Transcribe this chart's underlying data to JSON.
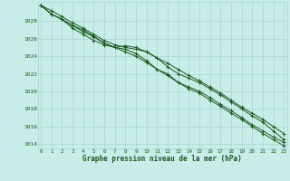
{
  "title": "Graphe pression niveau de la mer (hPa)",
  "background_color": "#c8ece8",
  "grid_color": "#a8d4d0",
  "line_color": "#1a5c1a",
  "xlim": [
    -0.3,
    23.3
  ],
  "ylim": [
    1013.5,
    1030.2
  ],
  "yticks": [
    1014,
    1016,
    1018,
    1020,
    1022,
    1024,
    1026,
    1028
  ],
  "xticks": [
    0,
    1,
    2,
    3,
    4,
    5,
    6,
    7,
    8,
    9,
    10,
    11,
    12,
    13,
    14,
    15,
    16,
    17,
    18,
    19,
    20,
    21,
    22,
    23
  ],
  "series": [
    [
      1029.8,
      1029.2,
      1028.5,
      1027.8,
      1027.2,
      1026.5,
      1025.8,
      1025.3,
      1025.0,
      1024.8,
      1024.5,
      1023.8,
      1023.2,
      1022.5,
      1021.8,
      1021.2,
      1020.5,
      1019.8,
      1019.0,
      1018.2,
      1017.5,
      1016.8,
      1016.0,
      1015.2
    ],
    [
      1029.8,
      1028.8,
      1028.2,
      1027.5,
      1026.8,
      1026.2,
      1025.5,
      1025.0,
      1025.2,
      1025.0,
      1024.5,
      1023.8,
      1022.8,
      1022.0,
      1021.5,
      1021.0,
      1020.3,
      1019.6,
      1018.8,
      1018.0,
      1017.2,
      1016.5,
      1015.5,
      1014.5
    ],
    [
      1029.8,
      1028.8,
      1028.2,
      1027.2,
      1026.5,
      1025.8,
      1025.3,
      1025.0,
      1024.8,
      1024.3,
      1023.5,
      1022.5,
      1021.8,
      1021.0,
      1020.5,
      1020.0,
      1019.3,
      1018.5,
      1017.8,
      1017.0,
      1016.2,
      1015.5,
      1014.8,
      1014.2
    ],
    [
      1029.8,
      1028.8,
      1028.2,
      1027.5,
      1027.0,
      1026.3,
      1025.5,
      1025.0,
      1024.5,
      1024.0,
      1023.3,
      1022.5,
      1022.0,
      1021.0,
      1020.3,
      1019.8,
      1019.0,
      1018.3,
      1017.5,
      1016.8,
      1016.0,
      1015.2,
      1014.5,
      1013.8
    ]
  ]
}
